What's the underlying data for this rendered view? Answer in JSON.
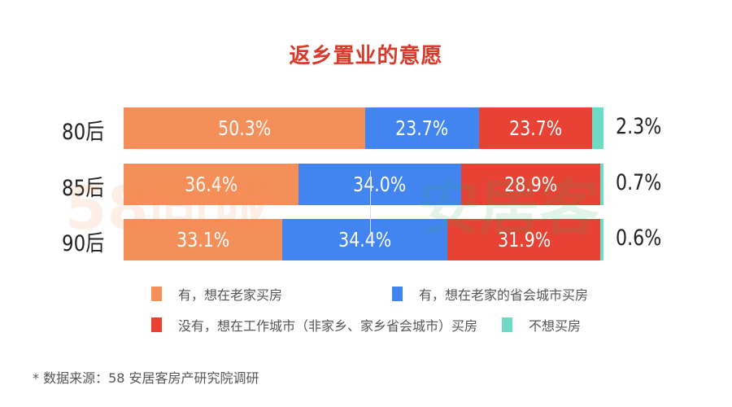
{
  "chart_data": {
    "type": "bar",
    "stacked": true,
    "orientation": "horizontal",
    "title": "返乡置业的意愿",
    "categories": [
      "80后",
      "85后",
      "90后"
    ],
    "series": [
      {
        "name": "有，想在老家买房",
        "color": "#f58f5a",
        "values": [
          50.3,
          36.4,
          33.1
        ],
        "labels": [
          "50.3%",
          "36.4%",
          "33.1%"
        ]
      },
      {
        "name": "有，想在老家的省会城市买房",
        "color": "#4285f0",
        "values": [
          23.7,
          34.0,
          34.4
        ],
        "labels": [
          "23.7%",
          "34.0%",
          "34.4%"
        ]
      },
      {
        "name": "没有，想在工作城市（非家乡、家乡省会城市）买房",
        "color": "#e84234",
        "values": [
          23.7,
          28.9,
          31.9
        ],
        "labels": [
          "23.7%",
          "28.9%",
          "31.9%"
        ]
      },
      {
        "name": "不想买房",
        "color": "#6edcc4",
        "values": [
          2.3,
          0.7,
          0.6
        ],
        "labels": [
          "2.3%",
          "0.7%",
          "0.6%"
        ]
      }
    ],
    "xlim": [
      0,
      100
    ],
    "legend": "bottom",
    "grid": false
  },
  "watermark": {
    "left": "58同城",
    "right": "安居客"
  },
  "note": "* 数据来源：58 安居客房产研究院调研"
}
